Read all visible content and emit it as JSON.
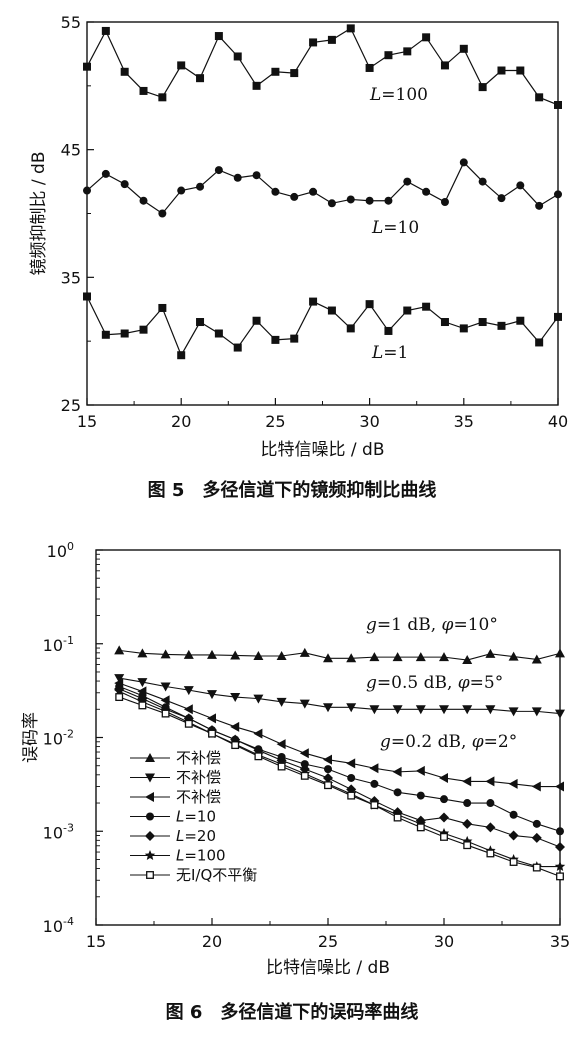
{
  "figures": [
    {
      "caption": "图 5　多径信道下的镜频抑制比曲线",
      "chart_data": {
        "type": "line",
        "xlabel": "比特信噪比 / dB",
        "ylabel": "镜频抑制比 / dB",
        "xlim": [
          15,
          40
        ],
        "ylim": [
          25,
          55
        ],
        "xticks": [
          "15",
          "20",
          "25",
          "30",
          "35",
          "40"
        ],
        "yticks": [
          "25",
          "35",
          "45",
          "55"
        ],
        "x": [
          15,
          16,
          17,
          18,
          19,
          20,
          21,
          22,
          23,
          24,
          25,
          26,
          27,
          28,
          29,
          30,
          31,
          32,
          33,
          34,
          35,
          36,
          37,
          38,
          39,
          40
        ],
        "series": [
          {
            "name": "L=100",
            "marker": "square",
            "values": [
              51.5,
              54.3,
              51.1,
              49.6,
              49.1,
              51.6,
              50.6,
              53.9,
              52.3,
              50.0,
              51.1,
              51.0,
              53.4,
              53.6,
              54.5,
              51.4,
              52.4,
              52.7,
              53.8,
              51.6,
              52.9,
              49.9,
              51.2,
              51.2,
              49.1,
              48.5
            ]
          },
          {
            "name": "L=10",
            "marker": "circle",
            "values": [
              41.8,
              43.1,
              42.3,
              41.0,
              40.0,
              41.8,
              42.1,
              43.4,
              42.8,
              43.0,
              41.7,
              41.3,
              41.7,
              40.8,
              41.1,
              41.0,
              41.0,
              42.5,
              41.7,
              40.9,
              44.0,
              42.5,
              41.2,
              42.2,
              40.6,
              41.5
            ]
          },
          {
            "name": "L=1",
            "marker": "square",
            "values": [
              33.5,
              30.5,
              30.6,
              30.9,
              32.6,
              28.9,
              31.5,
              30.6,
              29.5,
              31.6,
              30.1,
              30.2,
              33.1,
              32.4,
              31.0,
              32.9,
              30.8,
              32.4,
              32.7,
              31.5,
              31.0,
              31.5,
              31.2,
              31.6,
              29.9,
              31.9
            ]
          }
        ],
        "annotations": [
          {
            "pre": "L",
            "post": "=100"
          },
          {
            "pre": "L",
            "post": "=10"
          },
          {
            "pre": "L",
            "post": "=1"
          }
        ]
      }
    },
    {
      "caption": "图 6　多径信道下的误码率曲线",
      "chart_data": {
        "type": "line",
        "yscale": "log",
        "xlabel": "比特信噪比 / dB",
        "ylabel": "误码率",
        "xlim": [
          15,
          35
        ],
        "ylim": [
          0.0001,
          1
        ],
        "xticks": [
          "15",
          "20",
          "25",
          "30",
          "35"
        ],
        "yticks": [
          {
            "base": "10",
            "exp": "0"
          },
          {
            "base": "10",
            "exp": "-1"
          },
          {
            "base": "10",
            "exp": "-2"
          },
          {
            "base": "10",
            "exp": "-3"
          },
          {
            "base": "10",
            "exp": "-4"
          }
        ],
        "x": [
          16,
          17,
          18,
          19,
          20,
          21,
          22,
          23,
          24,
          25,
          26,
          27,
          28,
          29,
          30,
          31,
          32,
          33,
          34,
          35
        ],
        "series": [
          {
            "name": "不补偿",
            "marker": "triangle-up",
            "values": [
              0.085,
              0.079,
              0.077,
              0.076,
              0.076,
              0.075,
              0.074,
              0.074,
              0.08,
              0.07,
              0.07,
              0.072,
              0.072,
              0.072,
              0.072,
              0.067,
              0.078,
              0.073,
              0.068,
              0.079
            ]
          },
          {
            "name": "不补偿",
            "marker": "triangle-down",
            "values": [
              0.043,
              0.039,
              0.035,
              0.032,
              0.029,
              0.027,
              0.026,
              0.024,
              0.023,
              0.021,
              0.021,
              0.02,
              0.02,
              0.02,
              0.02,
              0.02,
              0.02,
              0.019,
              0.019,
              0.018
            ]
          },
          {
            "name": "不补偿",
            "marker": "triangle-left",
            "values": [
              0.038,
              0.031,
              0.025,
              0.02,
              0.016,
              0.013,
              0.011,
              0.0085,
              0.0068,
              0.0058,
              0.0053,
              0.0047,
              0.0043,
              0.0044,
              0.0037,
              0.0034,
              0.0034,
              0.0032,
              0.003,
              0.003
            ]
          },
          {
            "name": "L=10",
            "marker": "circle",
            "values": [
              0.035,
              0.028,
              0.021,
              0.016,
              0.012,
              0.0095,
              0.0075,
              0.0062,
              0.0052,
              0.0046,
              0.0037,
              0.0032,
              0.0026,
              0.0024,
              0.0022,
              0.002,
              0.002,
              0.0015,
              0.0012,
              0.001
            ]
          },
          {
            "name": "L=20",
            "marker": "diamond",
            "values": [
              0.033,
              0.026,
              0.02,
              0.016,
              0.012,
              0.0095,
              0.0073,
              0.0057,
              0.0046,
              0.0037,
              0.0028,
              0.0021,
              0.0016,
              0.0013,
              0.0014,
              0.0012,
              0.0011,
              0.0009,
              0.00085,
              0.00068
            ]
          },
          {
            "name": "L=100",
            "marker": "star",
            "values": [
              0.031,
              0.024,
              0.019,
              0.0145,
              0.011,
              0.0085,
              0.0065,
              0.0052,
              0.0041,
              0.0032,
              0.0025,
              0.0019,
              0.0015,
              0.0012,
              0.00095,
              0.00078,
              0.00062,
              0.0005,
              0.00042,
              0.00042
            ]
          },
          {
            "name": "无I/Q不平衡",
            "marker": "square-open",
            "values": [
              0.027,
              0.022,
              0.018,
              0.014,
              0.011,
              0.0083,
              0.0063,
              0.0049,
              0.0039,
              0.0031,
              0.0024,
              0.0019,
              0.0014,
              0.0011,
              0.00087,
              0.00071,
              0.00058,
              0.00047,
              0.00041,
              0.00033
            ]
          }
        ],
        "legend": [
          {
            "text": "不补偿"
          },
          {
            "text": "不补偿"
          },
          {
            "text": "不补偿"
          },
          {
            "pre": "L",
            "post": "=10"
          },
          {
            "pre": "L",
            "post": "=20"
          },
          {
            "pre": "L",
            "post": "=100"
          },
          {
            "text": "无I/Q不平衡"
          }
        ],
        "legend_placement": "lower-left",
        "annotations": [
          {
            "g": "g",
            "mid": "=1 dB, ",
            "phi": "φ",
            "post": "=10°"
          },
          {
            "g": "g",
            "mid": "=0.5 dB, ",
            "phi": "φ",
            "post": "=5°"
          },
          {
            "g": "g",
            "mid": "=0.2 dB, ",
            "phi": "φ",
            "post": "=2°"
          }
        ]
      }
    }
  ]
}
